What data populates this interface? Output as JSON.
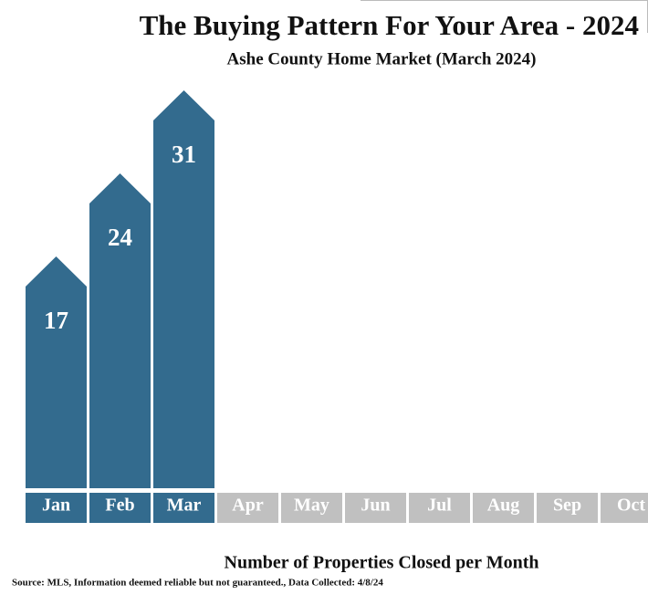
{
  "chart_data": {
    "type": "bar",
    "title": "The Buying Pattern For Your Area - 2024",
    "subtitle": "Ashe County Home Market (March 2024)",
    "x_label": "Number of Properties Closed per Month",
    "source": "Source: MLS, Information deemed reliable but not guaranteed., Data Collected: 4/8/24",
    "categories": [
      "Jan",
      "Feb",
      "Mar",
      "Apr",
      "May",
      "Jun",
      "Jul",
      "Aug",
      "Sep",
      "Oct"
    ],
    "values": [
      17,
      24,
      31,
      null,
      null,
      null,
      null,
      null,
      null,
      null
    ],
    "color": "#336b8e"
  }
}
